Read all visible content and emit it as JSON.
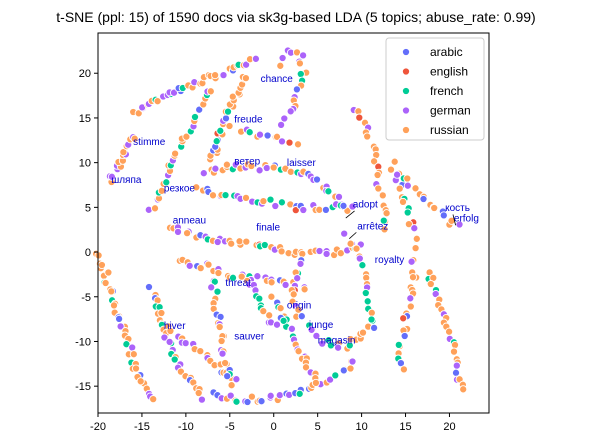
{
  "chart_data": {
    "type": "scatter",
    "title": "t-SNE (ppl: 15) of 1590 docs via sk3g-based LDA (5 topics; abuse_rate: 0.99)",
    "xlabel": "",
    "ylabel": "",
    "xlim": [
      -20,
      24.5
    ],
    "ylim": [
      -18,
      24.5
    ],
    "xticks": [
      -20,
      -15,
      -10,
      -5,
      0,
      5,
      10,
      15,
      20
    ],
    "yticks": [
      -15,
      -10,
      -5,
      0,
      5,
      10,
      15,
      20
    ],
    "grid": false,
    "legend_position": "top-right",
    "series": [
      {
        "name": "arabic",
        "color": "#636efa"
      },
      {
        "name": "english",
        "color": "#ef553b"
      },
      {
        "name": "french",
        "color": "#00cc96"
      },
      {
        "name": "german",
        "color": "#ab63fa"
      },
      {
        "name": "russian",
        "color": "#ffa15a"
      }
    ],
    "clusters": [
      {
        "path": [
          [
            -16,
            15.5
          ],
          [
            -14,
            16.5
          ],
          [
            -12,
            17.5
          ],
          [
            -10,
            18.5
          ],
          [
            -8,
            19.3
          ],
          [
            -6,
            20
          ],
          [
            -4,
            20.8
          ],
          [
            -2,
            21.5
          ]
        ],
        "n": 38,
        "mix": [
          0.05,
          0.02,
          0.15,
          0.2,
          0.58
        ]
      },
      {
        "path": [
          [
            -18.5,
            8
          ],
          [
            -17.5,
            10
          ],
          [
            -16.5,
            12
          ],
          [
            -15.5,
            13
          ]
        ],
        "n": 16,
        "mix": [
          0.05,
          0,
          0.05,
          0.35,
          0.55
        ]
      },
      {
        "path": [
          [
            -14,
            4.5
          ],
          [
            -13,
            7
          ],
          [
            -12,
            9
          ],
          [
            -11,
            11
          ],
          [
            -10,
            13
          ],
          [
            -9,
            15
          ],
          [
            -8,
            17
          ],
          [
            -7,
            18.5
          ]
        ],
        "n": 30,
        "mix": [
          0.05,
          0.03,
          0.12,
          0.3,
          0.5
        ]
      },
      {
        "path": [
          [
            -7,
            10
          ],
          [
            -6.5,
            12
          ],
          [
            -6,
            14
          ],
          [
            -5,
            16
          ],
          [
            -4,
            18
          ],
          [
            -3,
            20
          ]
        ],
        "n": 28,
        "mix": [
          0.1,
          0.03,
          0.12,
          0.15,
          0.6
        ]
      },
      {
        "path": [
          [
            1,
            21
          ],
          [
            2,
            22.5
          ],
          [
            3,
            22
          ],
          [
            3.5,
            20
          ],
          [
            3,
            18
          ],
          [
            2,
            16
          ],
          [
            1,
            14
          ]
        ],
        "n": 20,
        "mix": [
          0.05,
          0,
          0.2,
          0.25,
          0.5
        ]
      },
      {
        "path": [
          [
            -8,
            9
          ],
          [
            -5,
            9.5
          ],
          [
            -2,
            9.5
          ],
          [
            1,
            9.3
          ],
          [
            4,
            8.5
          ],
          [
            6,
            7
          ],
          [
            7.5,
            5.5
          ],
          [
            9,
            4
          ]
        ],
        "n": 40,
        "mix": [
          0.08,
          0.02,
          0.2,
          0.3,
          0.4
        ]
      },
      {
        "path": [
          [
            -9,
            7
          ],
          [
            -6,
            6.5
          ],
          [
            -3,
            6
          ],
          [
            0,
            5.5
          ],
          [
            3,
            5
          ],
          [
            6,
            5
          ],
          [
            9,
            5.3
          ]
        ],
        "n": 34,
        "mix": [
          0.08,
          0.03,
          0.18,
          0.31,
          0.4
        ]
      },
      {
        "path": [
          [
            -12,
            3
          ],
          [
            -10,
            2
          ],
          [
            -7,
            1.5
          ],
          [
            -4,
            1
          ],
          [
            -1,
            0.5
          ],
          [
            2,
            0
          ],
          [
            5,
            0
          ],
          [
            8,
            0
          ],
          [
            10,
            1
          ]
        ],
        "n": 44,
        "mix": [
          0.05,
          0.02,
          0.1,
          0.33,
          0.5
        ]
      },
      {
        "path": [
          [
            -11,
            -1
          ],
          [
            -8,
            -1.5
          ],
          [
            -5,
            -2.5
          ],
          [
            -2,
            -3
          ],
          [
            1,
            -3.5
          ],
          [
            4,
            -4
          ]
        ],
        "n": 30,
        "mix": [
          0.05,
          0.02,
          0.08,
          0.3,
          0.55
        ]
      },
      {
        "path": [
          [
            -20,
            0
          ],
          [
            -19,
            -3
          ],
          [
            -18,
            -6
          ],
          [
            -17,
            -9
          ],
          [
            -16,
            -12
          ],
          [
            -15,
            -14.5
          ],
          [
            -13.5,
            -16.5
          ]
        ],
        "n": 40,
        "mix": [
          0.02,
          0,
          0.1,
          0.15,
          0.73
        ]
      },
      {
        "path": [
          [
            -14,
            -4
          ],
          [
            -13,
            -7
          ],
          [
            -12,
            -10
          ],
          [
            -11,
            -12.5
          ],
          [
            -9.5,
            -14.5
          ],
          [
            -8,
            -16.5
          ]
        ],
        "n": 32,
        "mix": [
          0.05,
          0.02,
          0.1,
          0.2,
          0.63
        ]
      },
      {
        "path": [
          [
            -12,
            -8.5
          ],
          [
            -10,
            -10
          ],
          [
            -8,
            -11.5
          ],
          [
            -6,
            -13
          ],
          [
            -4,
            -14.5
          ]
        ],
        "n": 20,
        "mix": [
          0.05,
          0.03,
          0.1,
          0.32,
          0.5
        ]
      },
      {
        "path": [
          [
            -7,
            -16
          ],
          [
            -4,
            -16.5
          ],
          [
            -1,
            -16.5
          ],
          [
            2,
            -16
          ],
          [
            5,
            -15
          ],
          [
            7.5,
            -13.5
          ],
          [
            9.5,
            -12
          ]
        ],
        "n": 36,
        "mix": [
          0.08,
          0.03,
          0.1,
          0.3,
          0.49
        ]
      },
      {
        "path": [
          [
            -7,
            -3
          ],
          [
            -6.5,
            -6
          ],
          [
            -6,
            -9
          ],
          [
            -5.5,
            -12
          ],
          [
            -5,
            -15
          ]
        ],
        "n": 24,
        "mix": [
          0.05,
          0.02,
          0.12,
          0.31,
          0.5
        ]
      },
      {
        "path": [
          [
            0,
            -5
          ],
          [
            1,
            -7
          ],
          [
            2,
            -9
          ],
          [
            3,
            -11
          ],
          [
            4,
            -13
          ],
          [
            5,
            -15
          ]
        ],
        "n": 24,
        "mix": [
          0.08,
          0.02,
          0.15,
          0.25,
          0.5
        ]
      },
      {
        "path": [
          [
            3,
            -1
          ],
          [
            2.5,
            -3
          ],
          [
            2,
            -5
          ],
          [
            2.5,
            -6.5
          ],
          [
            3.5,
            -7.5
          ]
        ],
        "n": 14,
        "mix": [
          0.1,
          0.05,
          0.2,
          0.25,
          0.4
        ]
      },
      {
        "path": [
          [
            4,
            -8
          ],
          [
            5,
            -9.5
          ],
          [
            6.5,
            -10.5
          ],
          [
            8,
            -10.5
          ],
          [
            9.5,
            -9.5
          ],
          [
            11,
            -8
          ]
        ],
        "n": 18,
        "mix": [
          0.05,
          0.02,
          0.2,
          0.23,
          0.5
        ]
      },
      {
        "path": [
          [
            8,
            2
          ],
          [
            9.5,
            0
          ],
          [
            10.5,
            -3
          ],
          [
            11,
            -6
          ],
          [
            11.5,
            -9
          ]
        ],
        "n": 18,
        "mix": [
          0.05,
          0.02,
          0.15,
          0.28,
          0.5
        ]
      },
      {
        "path": [
          [
            9,
            16
          ],
          [
            10.5,
            14
          ],
          [
            11.5,
            11
          ],
          [
            12,
            8
          ],
          [
            12.5,
            5
          ],
          [
            12.5,
            2
          ]
        ],
        "n": 24,
        "mix": [
          0.08,
          0.02,
          0.12,
          0.28,
          0.5
        ]
      },
      {
        "path": [
          [
            13.5,
            10
          ],
          [
            14.5,
            7
          ],
          [
            15.5,
            4
          ],
          [
            16,
            1
          ],
          [
            16,
            -2
          ],
          [
            15.5,
            -5
          ],
          [
            15,
            -8
          ],
          [
            14.5,
            -11
          ],
          [
            14.5,
            -13.5
          ]
        ],
        "n": 40,
        "mix": [
          0.1,
          0.02,
          0.12,
          0.16,
          0.6
        ]
      },
      {
        "path": [
          [
            14,
            9
          ],
          [
            16,
            7
          ],
          [
            18,
            5
          ],
          [
            20,
            3.5
          ],
          [
            21.5,
            2.5
          ]
        ],
        "n": 16,
        "mix": [
          0.05,
          0,
          0.15,
          0.2,
          0.6
        ]
      },
      {
        "path": [
          [
            17.5,
            -2
          ],
          [
            18.5,
            -5
          ],
          [
            19.5,
            -8
          ],
          [
            20.5,
            -11
          ],
          [
            21,
            -14
          ],
          [
            21.5,
            -16
          ]
        ],
        "n": 26,
        "mix": [
          0.02,
          0,
          0.15,
          0.13,
          0.7
        ]
      },
      {
        "path": [
          [
            -3,
            -3
          ],
          [
            -2,
            -5
          ],
          [
            -1,
            -7
          ],
          [
            0,
            -8
          ],
          [
            1.5,
            -8
          ]
        ],
        "n": 14,
        "mix": [
          0.05,
          0.03,
          0.15,
          0.27,
          0.5
        ]
      },
      {
        "path": [
          [
            -5,
            14
          ],
          [
            -3,
            13.5
          ],
          [
            -1,
            13
          ],
          [
            1,
            12.5
          ],
          [
            3,
            12
          ]
        ],
        "n": 12,
        "mix": [
          0.1,
          0.05,
          0.15,
          0.2,
          0.5
        ]
      }
    ],
    "annotations": [
      {
        "text": "chance",
        "x": -1.5,
        "y": 19
      },
      {
        "text": "freude",
        "x": -4.5,
        "y": 14.5
      },
      {
        "text": "stimme",
        "x": -16,
        "y": 12
      },
      {
        "text": "ветер",
        "x": -4.5,
        "y": 9.8
      },
      {
        "text": "laisser",
        "x": 1.5,
        "y": 9.6
      },
      {
        "text": "шляпа",
        "x": -18.5,
        "y": 7.7
      },
      {
        "text": "резкое",
        "x": -12.5,
        "y": 6.8
      },
      {
        "text": "adopt",
        "x": 9,
        "y": 5
      },
      {
        "text": "кость",
        "x": 19.5,
        "y": 4.6
      },
      {
        "text": "anneau",
        "x": -11.5,
        "y": 3.2
      },
      {
        "text": "arrêtez",
        "x": 9.5,
        "y": 2.5
      },
      {
        "text": "erfolg",
        "x": 20.5,
        "y": 3.4
      },
      {
        "text": "finale",
        "x": -2,
        "y": 2.4
      },
      {
        "text": "royalty",
        "x": 11.5,
        "y": -1.2
      },
      {
        "text": "threat",
        "x": -5.5,
        "y": -3.8
      },
      {
        "text": "origin",
        "x": 1.5,
        "y": -6.3
      },
      {
        "text": "hiver",
        "x": -12.5,
        "y": -8.6
      },
      {
        "text": "junge",
        "x": 4,
        "y": -8.5
      },
      {
        "text": "sauver",
        "x": -4.5,
        "y": -9.8
      },
      {
        "text": "magasin",
        "x": 5,
        "y": -10.2
      }
    ]
  }
}
